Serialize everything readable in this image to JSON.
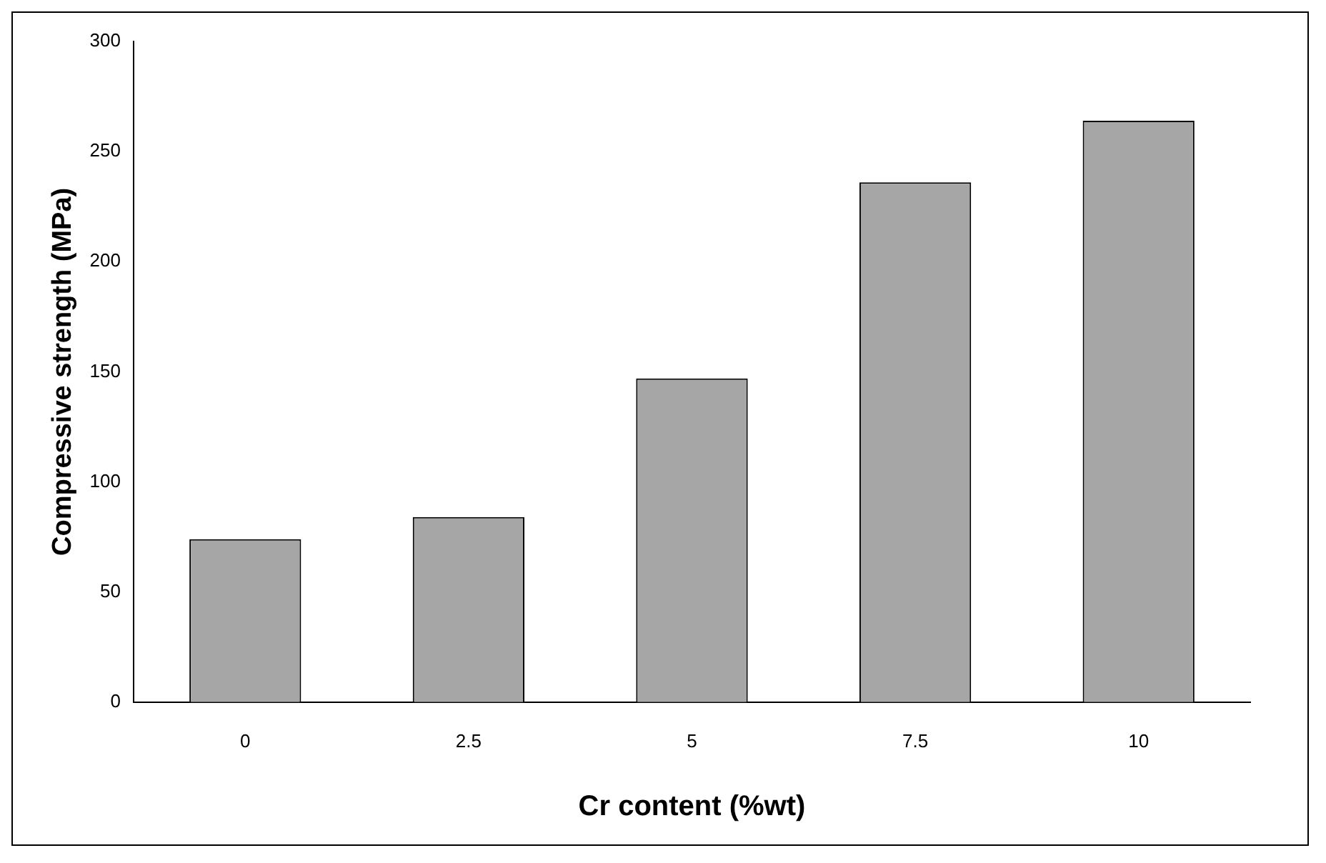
{
  "chart_data": {
    "type": "bar",
    "xlabel": "Cr content (%wt)",
    "ylabel": "Compressive strength (MPa)",
    "categories": [
      "0",
      "2.5",
      "5",
      "7.5",
      "10"
    ],
    "values": [
      74,
      84,
      147,
      236,
      264
    ],
    "color": "#a6a6a6",
    "ylim": [
      0,
      300
    ],
    "yticks": [
      0,
      50,
      100,
      150,
      200,
      250,
      300
    ],
    "grid": false,
    "legend": false
  }
}
